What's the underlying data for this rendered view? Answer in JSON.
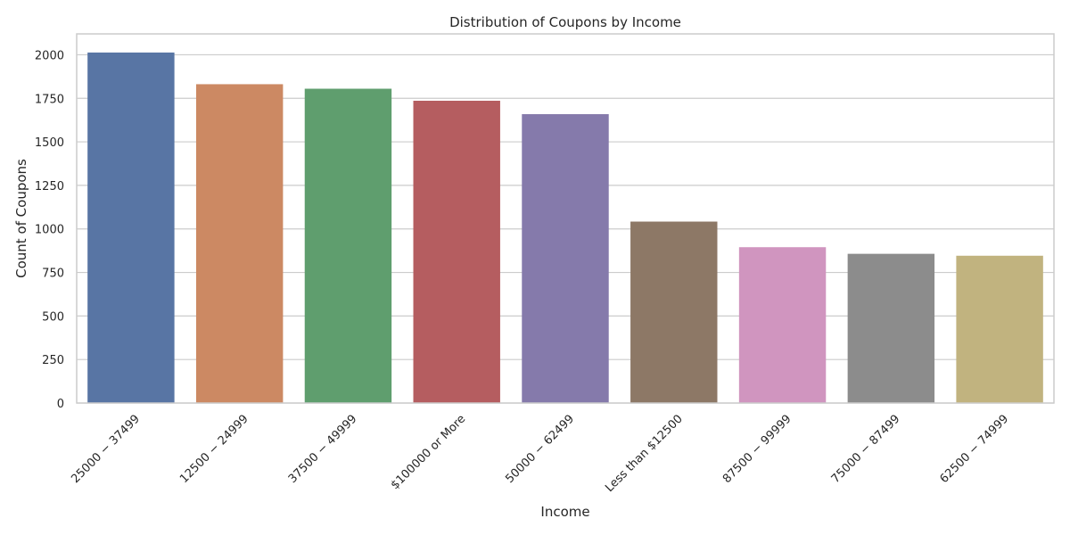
{
  "chart_data": {
    "type": "bar",
    "title": "Distribution of Coupons by Income",
    "xlabel": "Income",
    "ylabel": "Count of Coupons",
    "ylim": [
      0,
      2120
    ],
    "yticks": [
      0,
      250,
      500,
      750,
      1000,
      1250,
      1500,
      1750,
      2000
    ],
    "grid": "horizontal",
    "categories": [
      "$25000 - $37499",
      "$12500 - $24999",
      "$37500 - $49999",
      "$100000 or More",
      "$50000 - $62499",
      "Less than $12500",
      "$87500 - $99999",
      "$75000 - $87499",
      "$62500 - $74999"
    ],
    "category_labels": [
      "25000 − 37499",
      "12500 − 24999",
      "37500 − 49999",
      "$100000 or More",
      "50000 − 62499",
      "Less than $12500",
      "87500 − 99999",
      "75000 − 87499",
      "62500 − 74999"
    ],
    "values": [
      2013,
      1831,
      1805,
      1736,
      1659,
      1042,
      895,
      857,
      846
    ],
    "colors": [
      "#5875a4",
      "#cc8963",
      "#5f9e6e",
      "#b55d60",
      "#857aab",
      "#8d7866",
      "#d095bf",
      "#8c8c8c",
      "#c1b37f"
    ]
  }
}
